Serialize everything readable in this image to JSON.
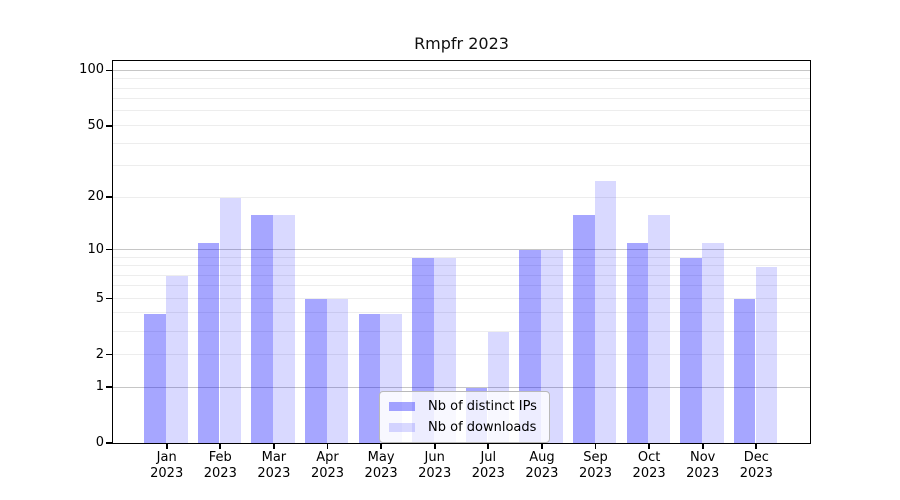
{
  "chart_data": {
    "type": "bar",
    "title": "Rmpfr 2023",
    "x_months": [
      "Jan",
      "Feb",
      "Mar",
      "Apr",
      "May",
      "Jun",
      "Jul",
      "Aug",
      "Sep",
      "Oct",
      "Nov",
      "Dec"
    ],
    "x_year": "2023",
    "series": [
      {
        "name": "Nb of distinct IPs",
        "color": "#0000ff",
        "alpha": 0.35,
        "values": [
          4,
          11,
          16,
          5,
          4,
          9,
          1,
          10,
          16,
          11,
          9,
          5
        ]
      },
      {
        "name": "Nb of downloads",
        "color": "#0000ff",
        "alpha": 0.15,
        "values": [
          7,
          20,
          16,
          5,
          4,
          9,
          3,
          10,
          25,
          16,
          11,
          8
        ]
      }
    ],
    "y_axis": {
      "scale": "log1p",
      "tick_values": [
        0,
        1,
        2,
        5,
        10,
        20,
        50,
        100
      ],
      "max_value": 112
    },
    "grid": {
      "major_values": [
        1,
        10,
        100
      ],
      "minor_values": [
        2,
        3,
        4,
        5,
        6,
        7,
        8,
        9,
        20,
        30,
        40,
        50,
        60,
        70,
        80,
        90
      ]
    },
    "legend": {
      "position": "bottom-center-inside",
      "entries": [
        "Nb of distinct IPs",
        "Nb of downloads"
      ]
    },
    "colors": {
      "bar_dark_rendered": "#a6a6ff",
      "bar_light_rendered": "#d9d9ff",
      "grid_major": "#c6c6c6",
      "grid_minor": "#ededed",
      "spine": "#000000"
    }
  }
}
